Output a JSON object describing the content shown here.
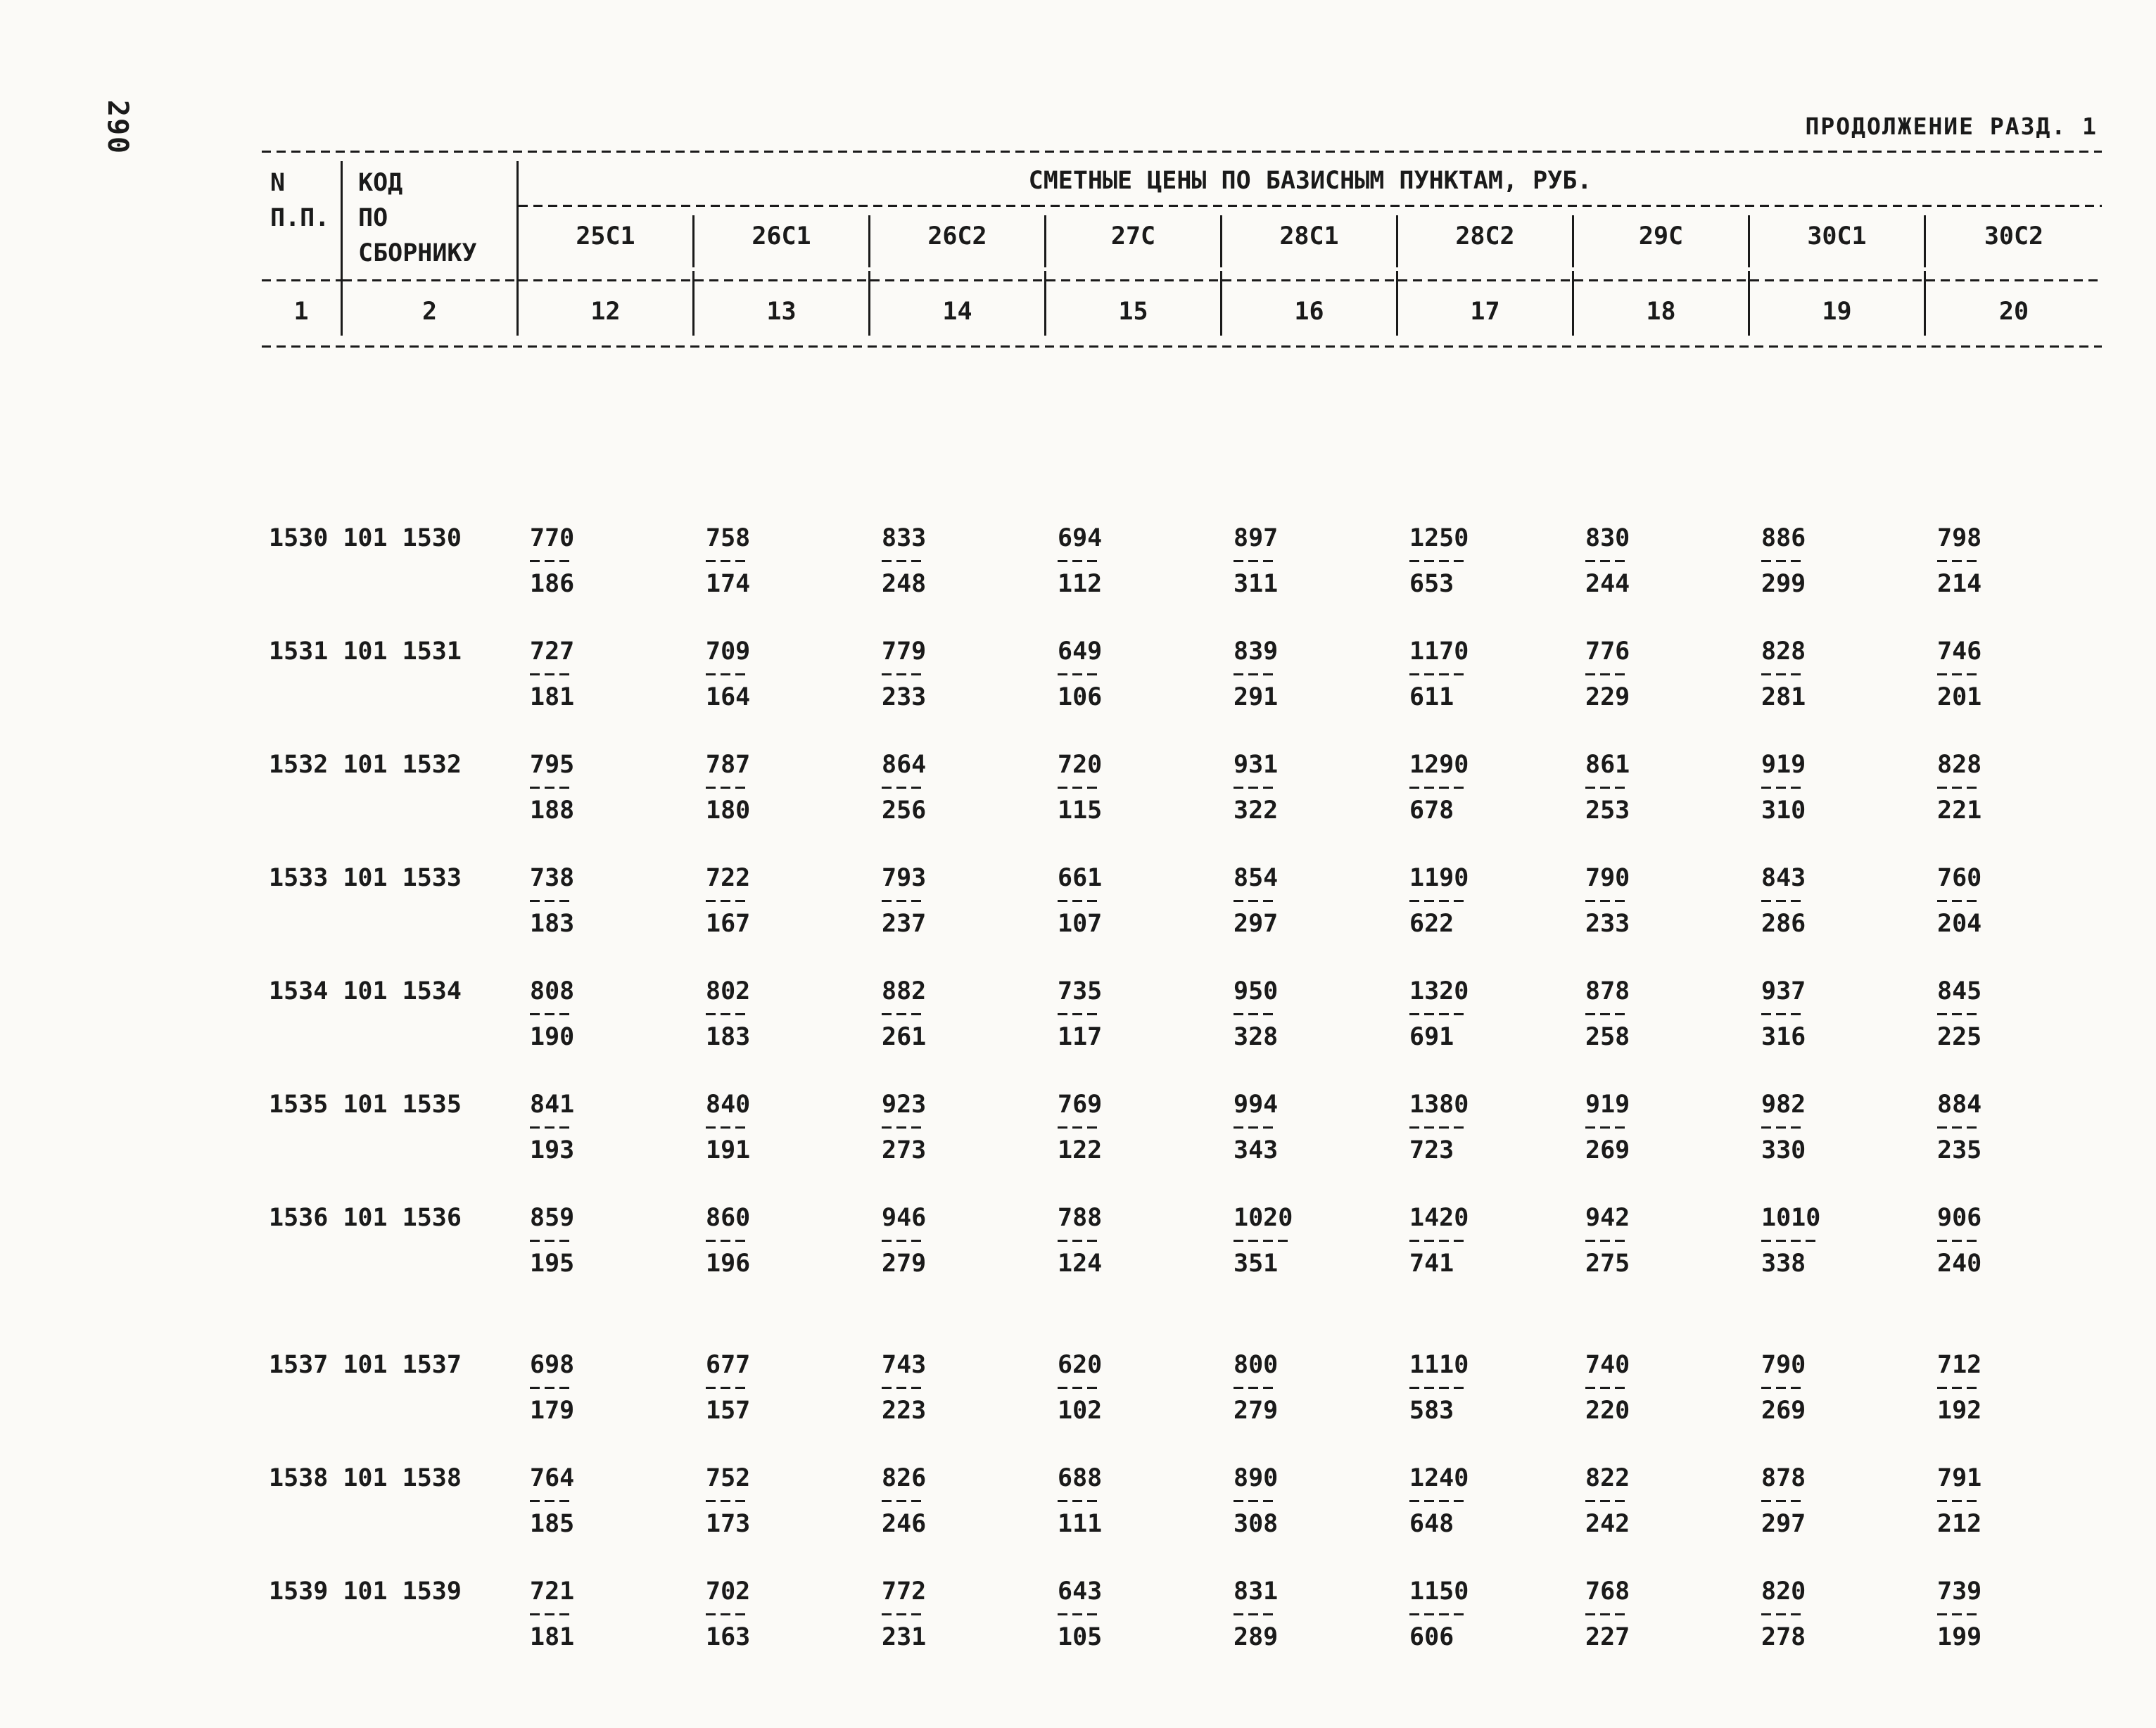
{
  "colors": {
    "ink": "#1a1a1a",
    "paper": "#fbfaf7"
  },
  "page": {
    "page_number": "290",
    "continuation": "ПРОДОЛЖЕНИЕ РАЗД. 1"
  },
  "table": {
    "col1_header": [
      "N",
      "П.П."
    ],
    "col2_header": [
      "КОД",
      "ПО",
      "СБОРНИКУ"
    ],
    "prices_title": "СМЕТНЫЕ ЦЕНЫ ПО БАЗИСНЫМ ПУНКТАМ, РУБ.",
    "station_columns": [
      "25С1",
      "26С1",
      "26С2",
      "27С",
      "28С1",
      "28С2",
      "29С",
      "30С1",
      "30С2"
    ],
    "index_row": [
      "1",
      "2",
      "12",
      "13",
      "14",
      "15",
      "16",
      "17",
      "18",
      "19",
      "20"
    ],
    "rows": [
      {
        "code": "1530 101 1530",
        "cells": [
          [
            "770",
            "186"
          ],
          [
            "758",
            "174"
          ],
          [
            "833",
            "248"
          ],
          [
            "694",
            "112"
          ],
          [
            "897",
            "311"
          ],
          [
            "1250",
            "653"
          ],
          [
            "830",
            "244"
          ],
          [
            "886",
            "299"
          ],
          [
            "798",
            "214"
          ]
        ]
      },
      {
        "code": "1531 101 1531",
        "cells": [
          [
            "727",
            "181"
          ],
          [
            "709",
            "164"
          ],
          [
            "779",
            "233"
          ],
          [
            "649",
            "106"
          ],
          [
            "839",
            "291"
          ],
          [
            "1170",
            "611"
          ],
          [
            "776",
            "229"
          ],
          [
            "828",
            "281"
          ],
          [
            "746",
            "201"
          ]
        ]
      },
      {
        "code": "1532 101 1532",
        "cells": [
          [
            "795",
            "188"
          ],
          [
            "787",
            "180"
          ],
          [
            "864",
            "256"
          ],
          [
            "720",
            "115"
          ],
          [
            "931",
            "322"
          ],
          [
            "1290",
            "678"
          ],
          [
            "861",
            "253"
          ],
          [
            "919",
            "310"
          ],
          [
            "828",
            "221"
          ]
        ]
      },
      {
        "code": "1533 101 1533",
        "cells": [
          [
            "738",
            "183"
          ],
          [
            "722",
            "167"
          ],
          [
            "793",
            "237"
          ],
          [
            "661",
            "107"
          ],
          [
            "854",
            "297"
          ],
          [
            "1190",
            "622"
          ],
          [
            "790",
            "233"
          ],
          [
            "843",
            "286"
          ],
          [
            "760",
            "204"
          ]
        ]
      },
      {
        "code": "1534 101 1534",
        "cells": [
          [
            "808",
            "190"
          ],
          [
            "802",
            "183"
          ],
          [
            "882",
            "261"
          ],
          [
            "735",
            "117"
          ],
          [
            "950",
            "328"
          ],
          [
            "1320",
            "691"
          ],
          [
            "878",
            "258"
          ],
          [
            "937",
            "316"
          ],
          [
            "845",
            "225"
          ]
        ]
      },
      {
        "code": "1535 101 1535",
        "cells": [
          [
            "841",
            "193"
          ],
          [
            "840",
            "191"
          ],
          [
            "923",
            "273"
          ],
          [
            "769",
            "122"
          ],
          [
            "994",
            "343"
          ],
          [
            "1380",
            "723"
          ],
          [
            "919",
            "269"
          ],
          [
            "982",
            "330"
          ],
          [
            "884",
            "235"
          ]
        ]
      },
      {
        "code": "1536 101 1536",
        "cells": [
          [
            "859",
            "195"
          ],
          [
            "860",
            "196"
          ],
          [
            "946",
            "279"
          ],
          [
            "788",
            "124"
          ],
          [
            "1020",
            "351"
          ],
          [
            "1420",
            "741"
          ],
          [
            "942",
            "275"
          ],
          [
            "1010",
            "338"
          ],
          [
            "906",
            "240"
          ]
        ]
      },
      {
        "code": "1537 101 1537",
        "spacer_before": true,
        "cells": [
          [
            "698",
            "179"
          ],
          [
            "677",
            "157"
          ],
          [
            "743",
            "223"
          ],
          [
            "620",
            "102"
          ],
          [
            "800",
            "279"
          ],
          [
            "1110",
            "583"
          ],
          [
            "740",
            "220"
          ],
          [
            "790",
            "269"
          ],
          [
            "712",
            "192"
          ]
        ]
      },
      {
        "code": "1538 101 1538",
        "cells": [
          [
            "764",
            "185"
          ],
          [
            "752",
            "173"
          ],
          [
            "826",
            "246"
          ],
          [
            "688",
            "111"
          ],
          [
            "890",
            "308"
          ],
          [
            "1240",
            "648"
          ],
          [
            "822",
            "242"
          ],
          [
            "878",
            "297"
          ],
          [
            "791",
            "212"
          ]
        ]
      },
      {
        "code": "1539 101 1539",
        "cells": [
          [
            "721",
            "181"
          ],
          [
            "702",
            "163"
          ],
          [
            "772",
            "231"
          ],
          [
            "643",
            "105"
          ],
          [
            "831",
            "289"
          ],
          [
            "1150",
            "606"
          ],
          [
            "768",
            "227"
          ],
          [
            "820",
            "278"
          ],
          [
            "739",
            "199"
          ]
        ]
      }
    ]
  }
}
